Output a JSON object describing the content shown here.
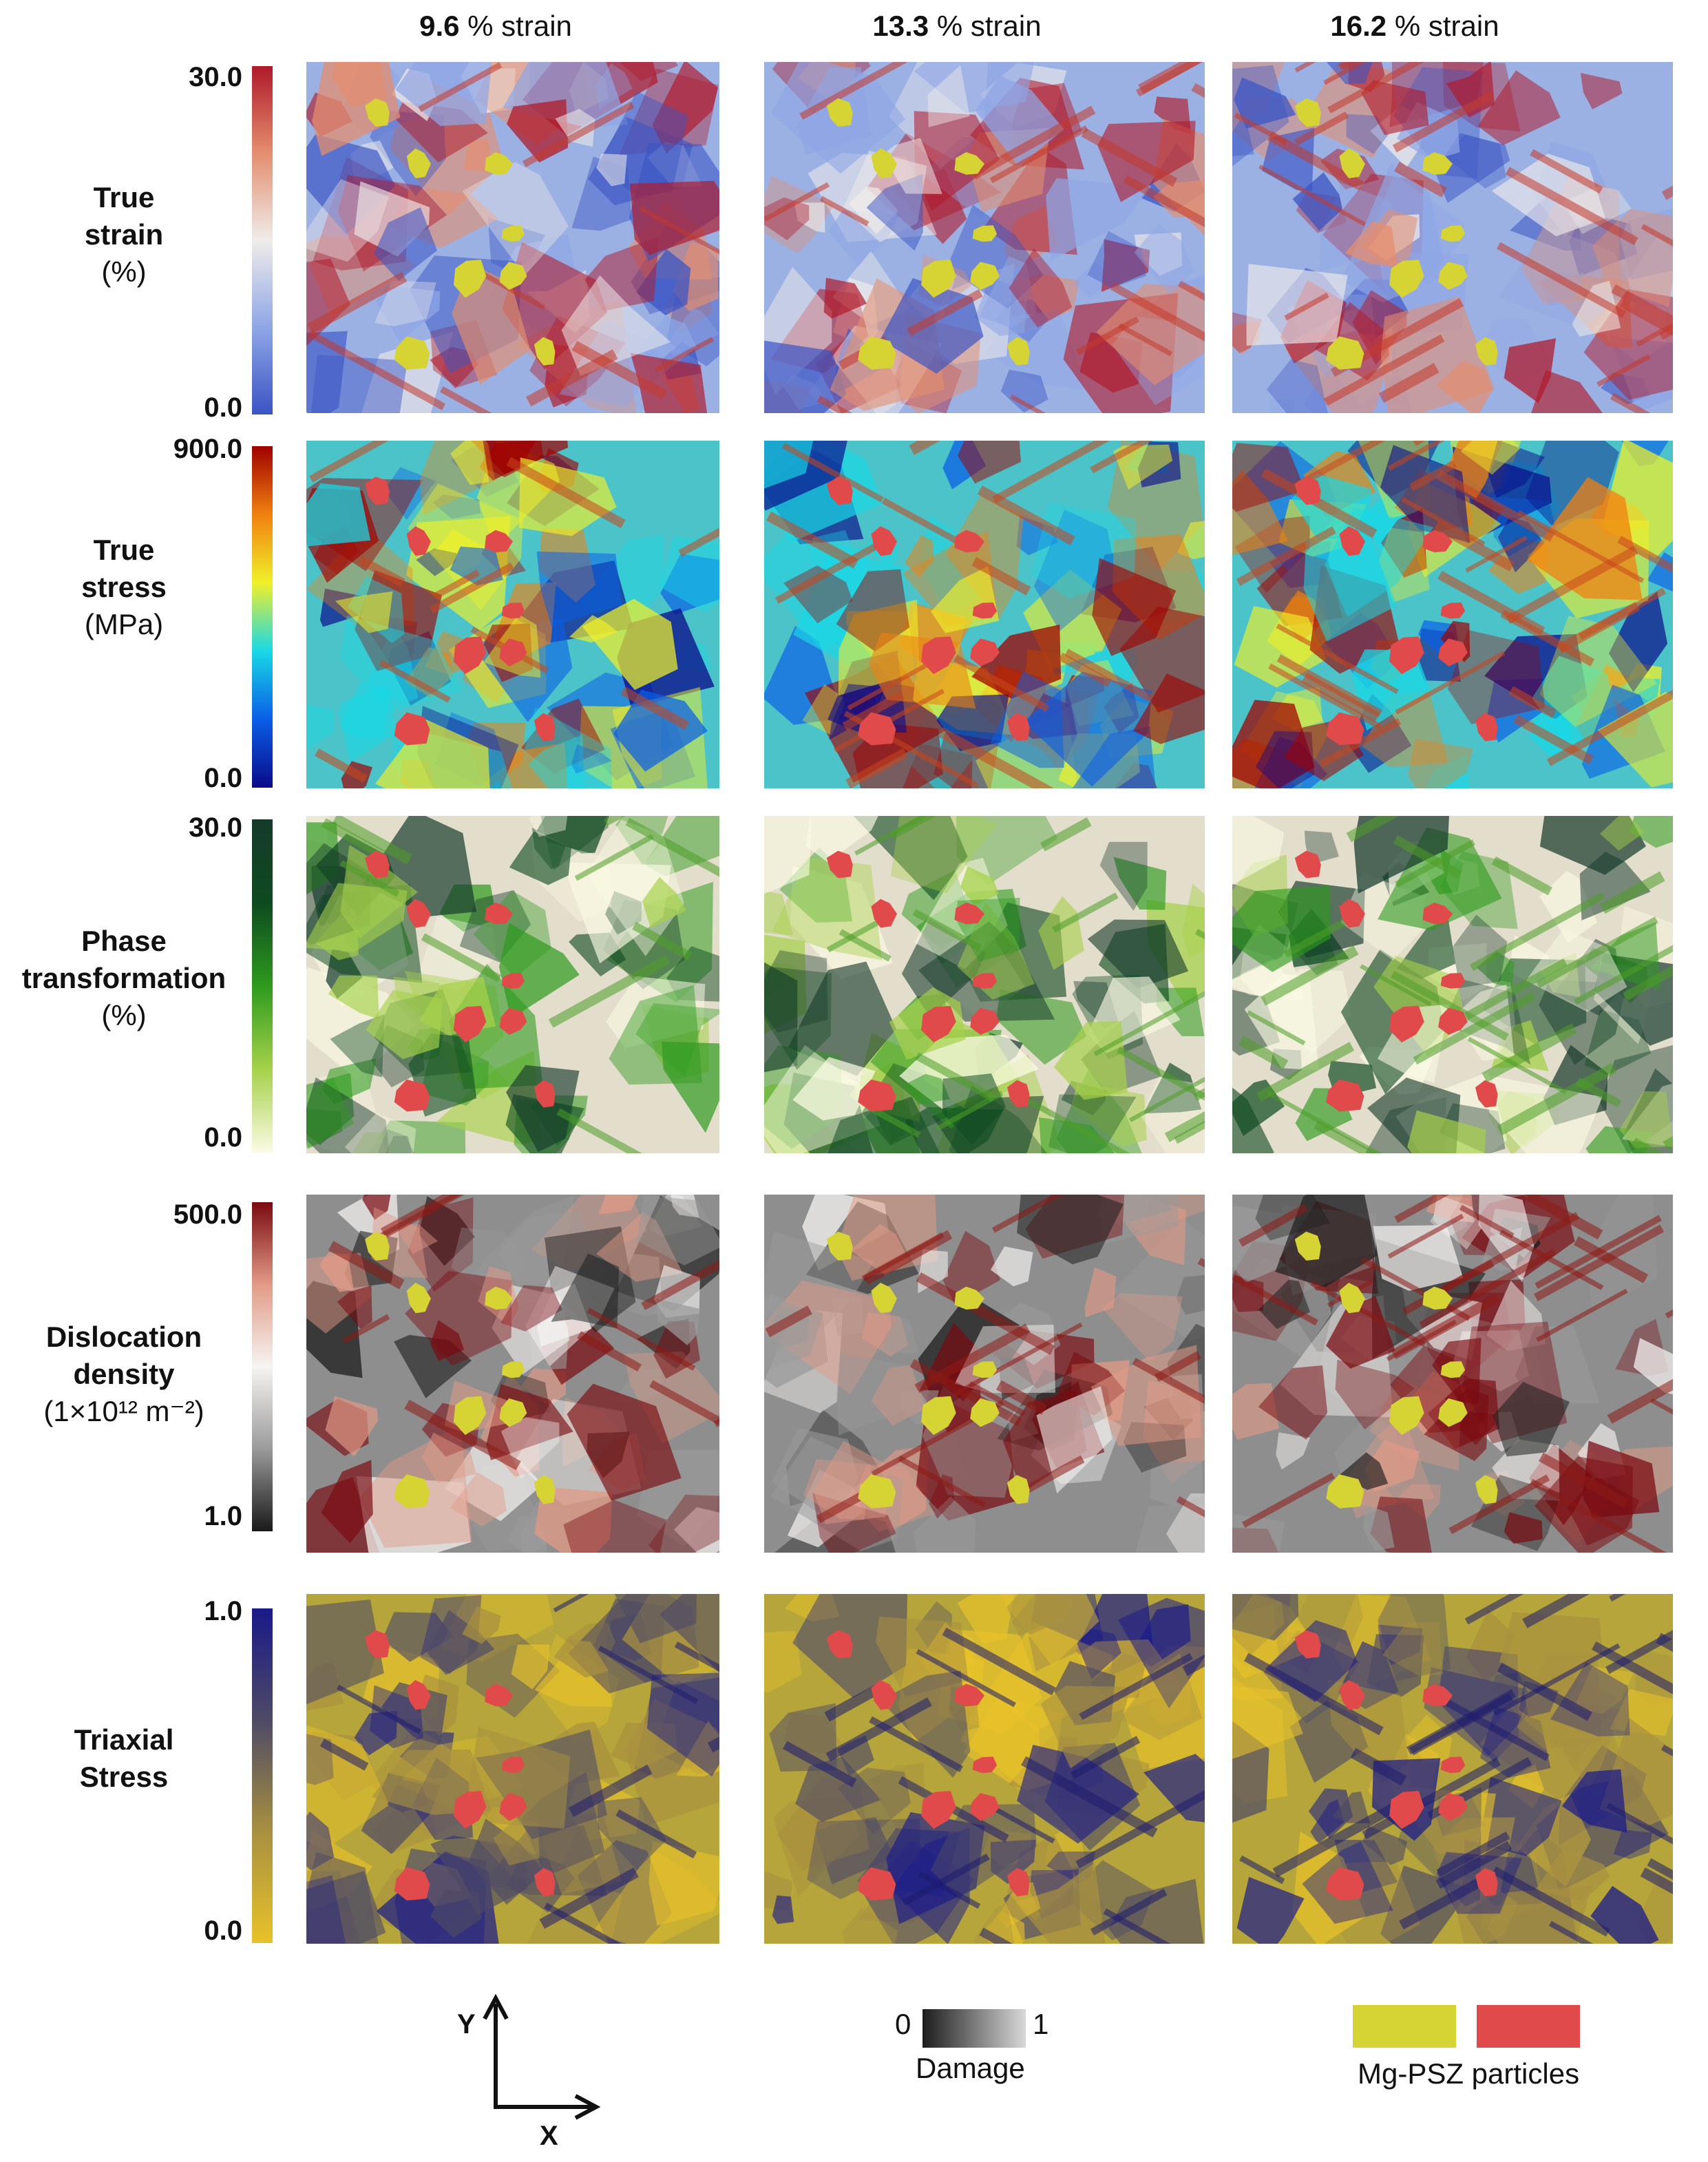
{
  "columns": [
    {
      "value": "9.6",
      "suffix": " % strain"
    },
    {
      "value": "13.3",
      "suffix": " % strain"
    },
    {
      "value": "16.2",
      "suffix": " % strain"
    }
  ],
  "rows": [
    {
      "title_lines": [
        "True",
        "strain"
      ],
      "unit": "(%)",
      "max": "30.0",
      "min": "0.0",
      "colormap": [
        "#3a54c4",
        "#8fa6e6",
        "#f0ecea",
        "#e48e6f",
        "#b0192a"
      ],
      "background": "#9cb1e3",
      "accent": "#c43a2c",
      "particle_color": "#d6d335"
    },
    {
      "title_lines": [
        "True",
        "stress"
      ],
      "unit": "(MPa)",
      "max": "900.0",
      "min": "0.0",
      "colormap": [
        "#0a0a8a",
        "#0a5ee6",
        "#18d8e6",
        "#f0f02a",
        "#f08010",
        "#a00000"
      ],
      "background": "#4cc3c8",
      "accent": "#c9461c",
      "particle_color": "#e04a4a"
    },
    {
      "title_lines": [
        "Phase",
        "transformation"
      ],
      "unit": "(%)",
      "max": "30.0",
      "min": "0.0",
      "colormap": [
        "#fbfbe4",
        "#a6d14a",
        "#2e9a1e",
        "#0e4a20",
        "#163a2c"
      ],
      "background": "#e3ddcb",
      "accent": "#4e9e28",
      "particle_color": "#e04a4a"
    },
    {
      "title_lines": [
        "Dislocation",
        "density"
      ],
      "unit": "(1×10¹² m⁻²)",
      "max": "500.0",
      "min": "1.0",
      "colormap": [
        "#1a1a1a",
        "#9a9a9a",
        "#f6f4f2",
        "#e29a86",
        "#7a0a10"
      ],
      "background": "#8e8e8e",
      "accent": "#8e1a16",
      "particle_color": "#d6d335"
    },
    {
      "title_lines": [
        "Triaxial",
        "Stress"
      ],
      "unit": "",
      "max": "1.0",
      "min": "0.0",
      "colormap": [
        "#e8c22a",
        "#a89040",
        "#4e4a66",
        "#1a1a8a"
      ],
      "background": "#b5a53a",
      "accent": "#1e1c6e",
      "particle_color": "#e04a4a"
    }
  ],
  "axes": {
    "y": "Y",
    "x": "X"
  },
  "damage_legend": {
    "label": "Damage",
    "min": "0",
    "max": "1",
    "colormap": [
      "#1c1c1c",
      "#d8d8d8"
    ]
  },
  "particles_legend": {
    "label": "Mg-PSZ particles",
    "colors": [
      "#d6d335",
      "#e04a4a"
    ]
  }
}
